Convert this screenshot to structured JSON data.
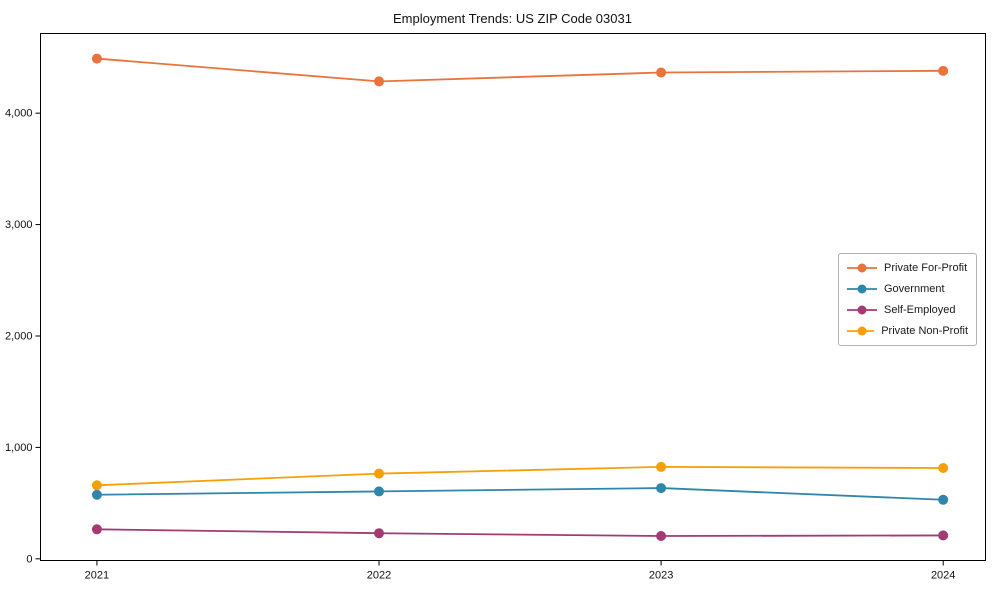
{
  "chart_data": {
    "type": "line",
    "title": "Employment Trends: US ZIP Code 03031",
    "categories": [
      "2021",
      "2022",
      "2023",
      "2024"
    ],
    "series": [
      {
        "name": "Private For-Profit",
        "color": "#E8743B",
        "values": [
          4490,
          4285,
          4365,
          4380
        ]
      },
      {
        "name": "Government",
        "color": "#2E86AB",
        "values": [
          575,
          605,
          635,
          530
        ]
      },
      {
        "name": "Self-Employed",
        "color": "#A23B72",
        "values": [
          265,
          230,
          205,
          210
        ]
      },
      {
        "name": "Private Non-Profit",
        "color": "#F5A009",
        "values": [
          660,
          765,
          825,
          815
        ]
      }
    ],
    "yticks": {
      "values": [
        0,
        1000,
        2000,
        3000,
        4000
      ],
      "labels": [
        "0",
        "1,000",
        "2,000",
        "3,000",
        "4,000"
      ]
    },
    "ylim": [
      -15,
      4715
    ],
    "xlabel": "",
    "ylabel": "",
    "grid": false,
    "frame": true,
    "marker": "circle",
    "legend_position": "center right"
  }
}
